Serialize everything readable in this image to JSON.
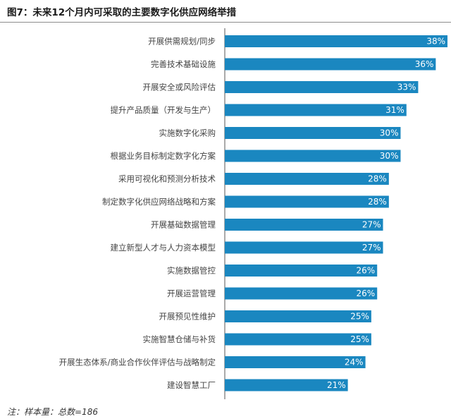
{
  "header": {
    "title": "图7：未来12个月内可采取的主要数字化供应网络举措"
  },
  "footer": {
    "note": "注：样本量：总数=186"
  },
  "colors": {
    "bar": "#1a87c0",
    "bar_label": "#ffffff",
    "category_label": "#444444",
    "axis": "#555555"
  },
  "chart_data": {
    "type": "bar",
    "orientation": "horizontal",
    "title": "图7：未来12个月内可采取的主要数字化供应网络举措",
    "categories": [
      "开展供需规划/同步",
      "完善技术基础设施",
      "开展安全或风险评估",
      "提升产品质量（开发与生产）",
      "实施数字化采购",
      "根据业务目标制定数字化方案",
      "采用可视化和预测分析技术",
      "制定数字化供应网络战略和方案",
      "开展基础数据管理",
      "建立新型人才与人力资本模型",
      "实施数据管控",
      "开展运营管理",
      "开展预见性维护",
      "实施智慧仓储与补货",
      "开展生态体系/商业合作伙伴评估与战略制定",
      "建设智慧工厂"
    ],
    "values": [
      38,
      36,
      33,
      31,
      30,
      30,
      28,
      28,
      27,
      27,
      26,
      26,
      25,
      25,
      24,
      21
    ],
    "value_labels": [
      "38%",
      "36%",
      "33%",
      "31%",
      "30%",
      "30%",
      "28%",
      "28%",
      "27%",
      "27%",
      "26%",
      "26%",
      "25%",
      "25%",
      "24%",
      "21%"
    ],
    "unit": "%",
    "xlim": [
      0,
      38
    ],
    "grid": false,
    "legend": "none"
  }
}
